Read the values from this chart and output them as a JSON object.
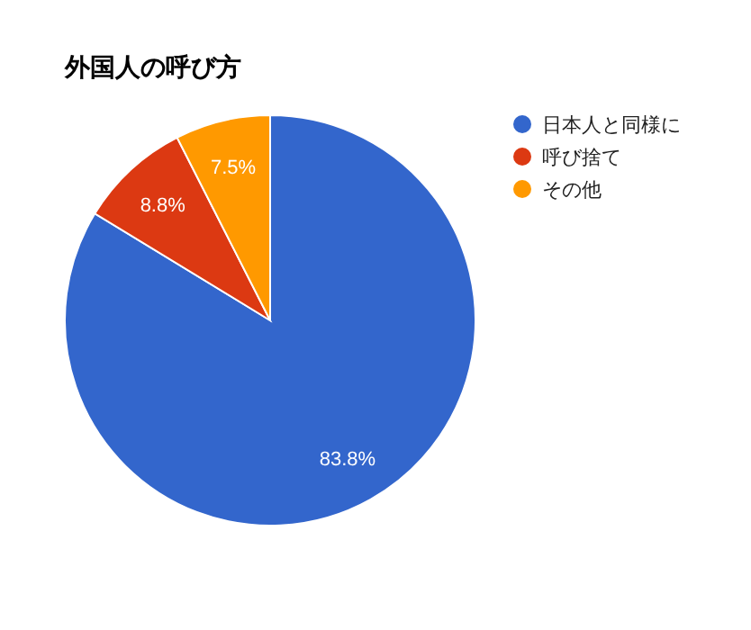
{
  "chart_data": {
    "type": "pie",
    "title": "外国人の呼び方",
    "categories": [
      "日本人と同様に",
      "呼び捨て",
      "その他"
    ],
    "values": [
      83.8,
      8.8,
      7.5
    ],
    "colors": [
      "#3366cc",
      "#dc3912",
      "#ff9900"
    ],
    "value_labels": [
      "83.8%",
      "8.8%",
      "7.5%"
    ],
    "legend": "right"
  }
}
